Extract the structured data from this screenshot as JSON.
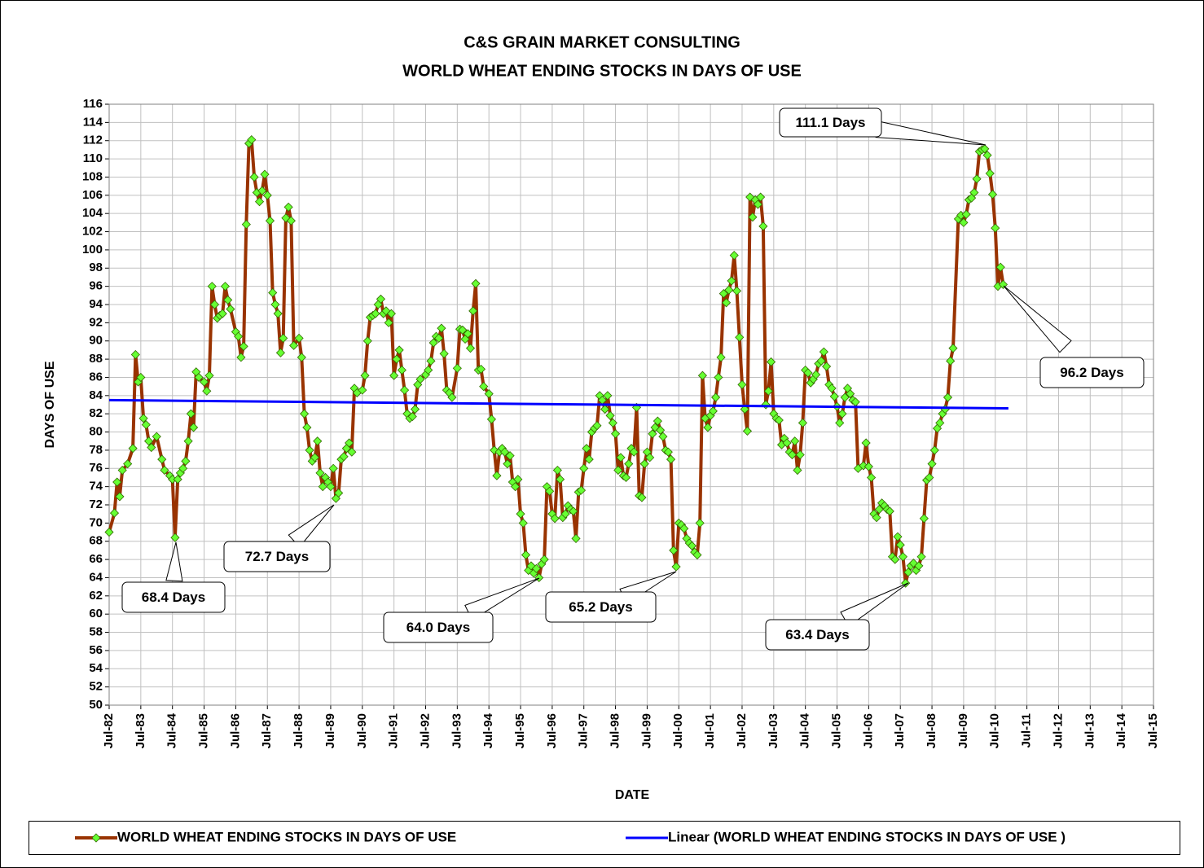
{
  "chart_data": {
    "type": "line",
    "title": "C&S GRAIN MARKET CONSULTING",
    "subtitle": "WORLD WHEAT ENDING STOCKS IN DAYS OF USE",
    "x_label": "DATE",
    "y_label": "DAYS OF USE",
    "xlim": [
      "Jul-82",
      "Jul-15"
    ],
    "xticks": [
      "Jul-82",
      "Jul-83",
      "Jul-84",
      "Jul-85",
      "Jul-86",
      "Jul-87",
      "Jul-88",
      "Jul-89",
      "Jul-90",
      "Jul-91",
      "Jul-92",
      "Jul-93",
      "Jul-94",
      "Jul-95",
      "Jul-96",
      "Jul-97",
      "Jul-98",
      "Jul-99",
      "Jul-00",
      "Jul-01",
      "Jul-02",
      "Jul-03",
      "Jul-04",
      "Jul-05",
      "Jul-06",
      "Jul-07",
      "Jul-08",
      "Jul-09",
      "Jul-10",
      "Jul-11",
      "Jul-12",
      "Jul-13",
      "Jul-14",
      "Jul-15"
    ],
    "ylim": [
      50,
      116
    ],
    "yticks": [
      50,
      52,
      54,
      56,
      58,
      60,
      62,
      64,
      66,
      68,
      70,
      72,
      74,
      76,
      78,
      80,
      82,
      84,
      86,
      88,
      90,
      92,
      94,
      96,
      98,
      100,
      102,
      104,
      106,
      108,
      110,
      112,
      114,
      116
    ],
    "grid": true,
    "series": [
      {
        "name": "WORLD WHEAT ENDING STOCKS IN DAYS OF USE",
        "color": "#993300",
        "marker_color": "#66ff33",
        "x": [
          "Jul-82",
          "Sep-82",
          "Oct-82",
          "Nov-82",
          "Dec-82",
          "Feb-83",
          "Apr-83",
          "May-83",
          "Jun-83",
          "Jul-83",
          "Aug-83",
          "Sep-83",
          "Oct-83",
          "Nov-83",
          "Jan-84",
          "Mar-84",
          "Apr-84",
          "Jun-84",
          "Jul-84",
          "Aug-84",
          "Sep-84",
          "Oct-84",
          "Nov-84",
          "Dec-84",
          "Jan-85",
          "Feb-85",
          "Mar-85",
          "Apr-85",
          "May-85",
          "Jul-85",
          "Aug-85",
          "Sep-85",
          "Oct-85",
          "Nov-85",
          "Dec-85",
          "Jan-86",
          "Feb-86",
          "Mar-86",
          "Apr-86",
          "May-86",
          "Jul-86",
          "Aug-86",
          "Sep-86",
          "Oct-86",
          "Nov-86",
          "Dec-86",
          "Jan-87",
          "Feb-87",
          "Mar-87",
          "Apr-87",
          "May-87",
          "Jun-87",
          "Jul-87",
          "Aug-87",
          "Sep-87",
          "Oct-87",
          "Nov-87",
          "Dec-87",
          "Jan-88",
          "Feb-88",
          "Mar-88",
          "Apr-88",
          "May-88",
          "Jul-88",
          "Aug-88",
          "Sep-88",
          "Oct-88",
          "Nov-88",
          "Dec-88",
          "Jan-89",
          "Feb-89",
          "Mar-89",
          "Apr-89",
          "May-89",
          "Jun-89",
          "Jul-89",
          "Aug-89",
          "Sep-89",
          "Oct-89",
          "Nov-89",
          "Dec-89",
          "Jan-90",
          "Feb-90",
          "Mar-90",
          "Apr-90",
          "May-90",
          "Jul-90",
          "Aug-90",
          "Sep-90",
          "Oct-90",
          "Nov-90",
          "Dec-90",
          "Jan-91",
          "Feb-91",
          "Mar-91",
          "Apr-91",
          "May-91",
          "Jun-91",
          "Jul-91",
          "Aug-91",
          "Sep-91",
          "Oct-91",
          "Nov-91",
          "Dec-91",
          "Jan-92",
          "Feb-92",
          "Mar-92",
          "Apr-92",
          "May-92",
          "Jul-92",
          "Aug-92",
          "Sep-92",
          "Oct-92",
          "Nov-92",
          "Dec-92",
          "Jan-93",
          "Feb-93",
          "Mar-93",
          "Apr-93",
          "May-93",
          "Jul-93",
          "Aug-93",
          "Sep-93",
          "Oct-93",
          "Nov-93",
          "Dec-93",
          "Jan-94",
          "Feb-94",
          "Mar-94",
          "Apr-94",
          "May-94",
          "Jul-94",
          "Aug-94",
          "Sep-94",
          "Oct-94",
          "Nov-94",
          "Dec-94",
          "Jan-95",
          "Feb-95",
          "Mar-95",
          "Apr-95",
          "May-95",
          "Jun-95",
          "Jul-95",
          "Aug-95",
          "Sep-95",
          "Oct-95",
          "Nov-95",
          "Dec-95",
          "Jan-96",
          "Feb-96",
          "Mar-96",
          "Apr-96",
          "May-96",
          "Jun-96",
          "Jul-96",
          "Aug-96",
          "Sep-96",
          "Oct-96",
          "Nov-96",
          "Dec-96",
          "Jan-97",
          "Feb-97",
          "Mar-97",
          "Apr-97",
          "May-97",
          "Jun-97",
          "Jul-97",
          "Aug-97",
          "Sep-97",
          "Oct-97",
          "Nov-97",
          "Dec-97",
          "Jan-98",
          "Feb-98",
          "Mar-98",
          "Apr-98",
          "May-98",
          "Jun-98",
          "Jul-98",
          "Aug-98",
          "Sep-98",
          "Oct-98",
          "Nov-98",
          "Dec-98",
          "Jan-99",
          "Feb-99",
          "Mar-99",
          "Apr-99",
          "May-99",
          "Jun-99",
          "Jul-99",
          "Aug-99",
          "Sep-99",
          "Oct-99",
          "Nov-99",
          "Dec-99",
          "Jan-00",
          "Feb-00",
          "Mar-00",
          "Apr-00",
          "May-00",
          "Jun-00",
          "Jul-00",
          "Aug-00",
          "Sep-00",
          "Oct-00",
          "Nov-00",
          "Dec-00",
          "Jan-01",
          "Feb-01",
          "Mar-01",
          "Apr-01",
          "May-01",
          "Jun-01",
          "Jul-01",
          "Aug-01",
          "Sep-01",
          "Oct-01",
          "Nov-01",
          "Dec-01",
          "Jan-02",
          "Feb-02",
          "Mar-02",
          "Apr-02",
          "May-02",
          "Jun-02",
          "Jul-02",
          "Aug-02",
          "Sep-02",
          "Oct-02",
          "Nov-02",
          "Dec-02",
          "Jan-03",
          "Feb-03",
          "Mar-03",
          "Apr-03",
          "May-03",
          "Jun-03",
          "Jul-03",
          "Aug-03",
          "Sep-03",
          "Oct-03",
          "Nov-03",
          "Dec-03",
          "Jan-04",
          "Feb-04",
          "Mar-04",
          "Apr-04",
          "May-04",
          "Jun-04",
          "Jul-04",
          "Aug-04",
          "Sep-04",
          "Oct-04",
          "Nov-04",
          "Dec-04",
          "Jan-05",
          "Feb-05",
          "Mar-05",
          "Apr-05",
          "May-05",
          "Jun-05",
          "Jul-05",
          "Aug-05",
          "Sep-05",
          "Oct-05",
          "Nov-05",
          "Dec-05",
          "Jan-06",
          "Feb-06",
          "Mar-06",
          "May-06",
          "Jun-06",
          "Jul-06",
          "Aug-06",
          "Sep-06",
          "Oct-06",
          "Nov-06",
          "Dec-06",
          "Jan-07",
          "Feb-07",
          "Mar-07",
          "Apr-07",
          "May-07",
          "Jun-07",
          "Jul-07",
          "Aug-07",
          "Sep-07",
          "Oct-07",
          "Nov-07",
          "Dec-07",
          "Jan-08",
          "Feb-08",
          "Mar-08",
          "Apr-08",
          "May-08",
          "Jun-08",
          "Jul-08",
          "Aug-08",
          "Sep-08",
          "Oct-08",
          "Nov-08",
          "Dec-08",
          "Jan-09",
          "Feb-09",
          "Mar-09",
          "May-09",
          "Jun-09",
          "Jul-09",
          "Aug-09",
          "Sep-09",
          "Oct-09",
          "Nov-09",
          "Dec-09",
          "Jan-10",
          "Feb-10",
          "Mar-10",
          "Apr-10",
          "May-10",
          "Jun-10",
          "Jul-10",
          "Aug-10",
          "Sep-10",
          "Oct-10"
        ],
        "values": [
          69.0,
          71.1,
          74.5,
          72.9,
          75.8,
          76.5,
          78.2,
          88.5,
          85.5,
          86.0,
          81.5,
          80.8,
          79.0,
          78.3,
          79.5,
          77.0,
          75.8,
          75.2,
          74.8,
          68.4,
          74.8,
          75.5,
          76.0,
          76.8,
          79.0,
          82.0,
          80.5,
          86.6,
          86.0,
          85.5,
          84.5,
          86.2,
          96.0,
          94.0,
          92.5,
          92.8,
          93.0,
          96.0,
          94.5,
          93.5,
          91.0,
          90.5,
          88.2,
          89.4,
          102.8,
          111.7,
          112.1,
          108.0,
          106.3,
          105.3,
          106.5,
          108.3,
          106.0,
          103.2,
          95.3,
          94.0,
          93.0,
          88.7,
          90.3,
          103.5,
          104.7,
          103.2,
          89.5,
          90.3,
          88.2,
          82.0,
          80.5,
          78.0,
          76.8,
          77.2,
          79.0,
          75.5,
          74.0,
          75.0,
          74.5,
          74.0,
          76.0,
          72.7,
          73.3,
          77.0,
          77.3,
          78.2,
          78.8,
          77.8,
          84.8,
          84.3,
          84.6,
          86.2,
          90.0,
          92.6,
          92.8,
          93.0,
          94.0,
          94.6,
          93.0,
          93.3,
          92.0,
          93.0,
          86.2,
          88.0,
          89.0,
          86.8,
          84.6,
          82.0,
          81.5,
          81.7,
          82.5,
          85.2,
          85.8,
          86.3,
          86.8,
          87.8,
          89.8,
          90.5,
          90.3,
          91.4,
          88.6,
          84.6,
          84.3,
          83.8,
          87.0,
          91.3,
          91.2,
          90.2,
          90.8,
          89.2,
          93.3,
          96.3,
          86.8,
          86.9,
          85.0,
          84.2,
          81.4,
          78.0,
          75.2,
          77.8,
          78.2,
          77.8,
          76.5,
          77.4,
          74.5,
          74.0,
          74.8,
          71.0,
          70.0,
          66.5,
          64.8,
          65.3,
          64.5,
          65.0,
          64.0,
          65.5,
          66.0,
          74.0,
          73.5,
          71.0,
          70.5,
          75.8,
          74.8,
          70.6,
          71.0,
          71.9,
          71.5,
          71.3,
          68.3,
          73.4,
          73.6,
          76.0,
          78.2,
          77.0,
          80.0,
          80.4,
          80.7,
          84.0,
          83.5,
          82.5,
          84.0,
          81.8,
          81.0,
          79.8,
          75.8,
          77.2,
          75.2,
          75.0,
          76.5,
          78.2,
          77.8,
          82.7,
          73.0,
          72.8,
          76.5,
          77.8,
          77.2,
          79.8,
          80.5,
          81.2,
          80.2,
          79.5,
          78.0,
          77.8,
          77.0,
          67.0,
          65.2,
          70.0,
          69.8,
          69.4,
          68.3,
          67.8,
          67.5,
          66.8,
          66.5,
          70.0,
          86.2,
          81.5,
          80.5,
          81.8,
          82.3,
          83.8,
          86.0,
          88.2,
          95.2,
          94.2,
          95.6,
          96.6,
          99.4,
          95.5,
          90.4,
          85.2,
          82.5,
          80.1,
          105.8,
          103.6,
          105.5,
          105.0,
          105.8,
          102.6,
          83.0,
          84.5,
          87.7,
          82.0,
          81.5,
          81.3,
          78.6,
          79.3,
          78.8,
          77.8,
          77.5,
          79.0,
          75.8,
          77.5,
          81.0,
          86.8,
          86.5,
          85.4,
          85.8,
          86.3,
          87.5,
          87.8,
          88.8,
          87.2,
          85.2,
          84.8,
          83.9,
          82.8,
          81.0,
          82.0,
          83.8,
          84.8,
          84.2,
          83.5,
          83.3,
          76.0,
          76.3,
          78.8,
          76.2,
          75.0,
          71.0,
          70.6,
          71.5,
          72.2,
          71.9,
          71.5,
          71.3,
          66.3,
          66.0,
          68.5,
          67.6,
          66.3,
          63.4,
          64.6,
          65.3,
          65.6,
          64.8,
          65.3,
          66.3,
          70.5,
          74.7,
          75.0,
          76.5,
          78.0,
          80.4,
          81.0,
          82.0,
          82.5,
          83.8,
          87.8,
          89.2,
          103.4,
          103.8,
          103.0,
          103.9,
          105.5,
          105.7,
          106.3,
          107.8,
          110.8,
          111.0,
          111.1,
          110.4,
          108.4,
          106.1,
          102.4,
          96.0,
          98.1,
          96.2
        ]
      },
      {
        "name": "Linear (WORLD WHEAT ENDING STOCKS IN DAYS OF USE )",
        "color": "#0000ff",
        "x": [
          "Jul-82",
          "Dec-10"
        ],
        "values": [
          83.5,
          82.6
        ]
      }
    ],
    "annotations": [
      "111.1 Days",
      "96.2 Days",
      "72.7 Days",
      "68.4 Days",
      "64.0 Days",
      "65.2 Days",
      "63.4 Days"
    ]
  }
}
